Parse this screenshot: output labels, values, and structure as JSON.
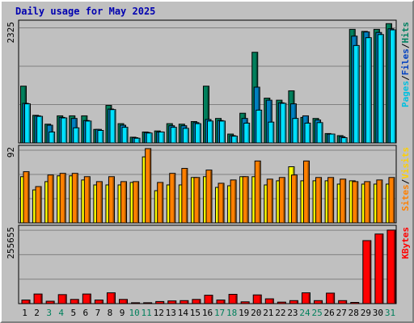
{
  "title": "Daily usage for May 2025",
  "chart_data": [
    {
      "type": "bar",
      "panel": "pages-files-hits",
      "ymax_label": "2325",
      "ylim": [
        0,
        2325
      ],
      "grid": true,
      "categories": [
        "1",
        "2",
        "3",
        "4",
        "5",
        "6",
        "7",
        "8",
        "9",
        "10",
        "11",
        "12",
        "13",
        "14",
        "15",
        "16",
        "17",
        "18",
        "19",
        "20",
        "21",
        "22",
        "23",
        "24",
        "25",
        "26",
        "27",
        "28",
        "29",
        "30",
        "31"
      ],
      "weekend_days": [
        "3",
        "4",
        "10",
        "11",
        "17",
        "18",
        "24",
        "25",
        "31"
      ],
      "legend": [
        "Pages",
        "Files",
        "Hits"
      ],
      "series": [
        {
          "name": "Hits",
          "color": "#00805c",
          "values": [
            1090,
            530,
            360,
            520,
            520,
            520,
            260,
            720,
            370,
            110,
            210,
            230,
            370,
            360,
            410,
            1090,
            470,
            170,
            570,
            1740,
            860,
            820,
            1000,
            490,
            470,
            180,
            140,
            2180,
            2140,
            2180,
            2290
          ]
        },
        {
          "name": "Files",
          "color": "#0080c0",
          "values": [
            760,
            520,
            340,
            490,
            470,
            430,
            260,
            650,
            340,
            100,
            200,
            210,
            330,
            330,
            390,
            450,
            430,
            140,
            470,
            1070,
            820,
            770,
            750,
            520,
            440,
            170,
            120,
            2050,
            2130,
            2120,
            2190
          ]
        },
        {
          "name": "Pages",
          "color": "#00e0ff",
          "values": [
            750,
            510,
            210,
            480,
            290,
            420,
            240,
            640,
            300,
            90,
            190,
            210,
            300,
            280,
            370,
            420,
            420,
            130,
            380,
            630,
            400,
            760,
            470,
            380,
            390,
            170,
            100,
            1870,
            2020,
            2080,
            2170
          ]
        }
      ],
      "label_colors": {
        "Pages": "#00c0e0",
        "Files": "#0040c0",
        "Hits": "#008060"
      }
    },
    {
      "type": "bar",
      "panel": "visits-sites",
      "ymax_label": "92",
      "ylim": [
        0,
        92
      ],
      "grid": true,
      "legend": [
        "Sites",
        "Visits"
      ],
      "series": [
        {
          "name": "Visits",
          "color": "#ffff00",
          "values": [
            56,
            40,
            50,
            57,
            57,
            52,
            46,
            46,
            46,
            49,
            80,
            39,
            46,
            46,
            55,
            56,
            43,
            45,
            56,
            56,
            46,
            51,
            68,
            51,
            51,
            51,
            47,
            51,
            47,
            47,
            47
          ]
        },
        {
          "name": "Sites",
          "color": "#ff8000",
          "values": [
            62,
            44,
            58,
            60,
            60,
            56,
            50,
            56,
            50,
            50,
            90,
            49,
            60,
            66,
            55,
            64,
            48,
            52,
            56,
            75,
            53,
            55,
            58,
            75,
            55,
            55,
            53,
            50,
            50,
            52,
            55
          ]
        }
      ],
      "label_colors": {
        "Sites": "#ff8000",
        "Visits": "#ffd000"
      }
    },
    {
      "type": "bar",
      "panel": "kbytes",
      "ymax_label": "255655",
      "ylim": [
        0,
        255655
      ],
      "grid": true,
      "legend": [
        "KBytes"
      ],
      "series": [
        {
          "name": "KBytes",
          "color": "#ff0000",
          "values": [
            12000,
            32000,
            8000,
            30000,
            14000,
            32000,
            12000,
            36000,
            14000,
            3000,
            3000,
            7000,
            9000,
            10000,
            14000,
            28000,
            12000,
            31000,
            6000,
            29000,
            16000,
            5000,
            10000,
            36000,
            10000,
            35000,
            10000,
            4000,
            210000,
            232000,
            245000
          ]
        }
      ],
      "label_colors": {
        "KBytes": "#ff0000"
      }
    }
  ],
  "colors": {
    "weekday_label": "#000000",
    "weekend_label": "#00805c",
    "separator": "#000000"
  }
}
